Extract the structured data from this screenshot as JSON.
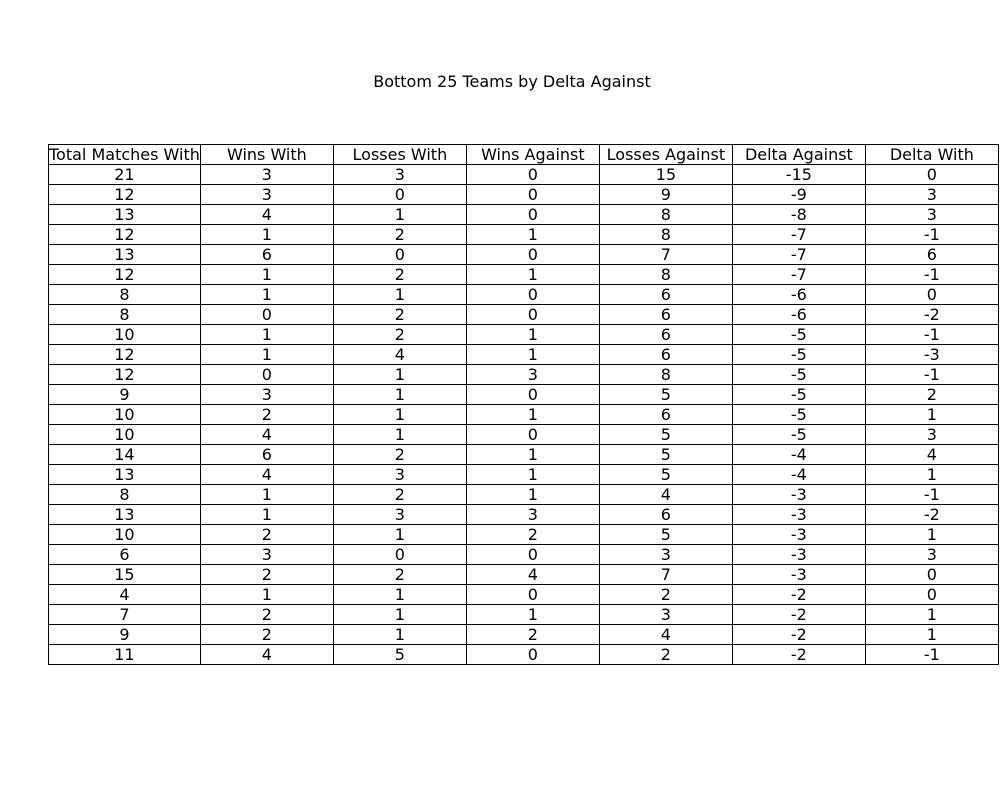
{
  "chart_data": {
    "type": "table",
    "title": "Bottom 25 Teams by Delta Against",
    "columns": [
      "Total Matches With",
      "Wins With",
      "Losses With",
      "Wins Against",
      "Losses Against",
      "Delta Against",
      "Delta With"
    ],
    "rows": [
      [
        21,
        3,
        3,
        0,
        15,
        -15,
        0
      ],
      [
        12,
        3,
        0,
        0,
        9,
        -9,
        3
      ],
      [
        13,
        4,
        1,
        0,
        8,
        -8,
        3
      ],
      [
        12,
        1,
        2,
        1,
        8,
        -7,
        -1
      ],
      [
        13,
        6,
        0,
        0,
        7,
        -7,
        6
      ],
      [
        12,
        1,
        2,
        1,
        8,
        -7,
        -1
      ],
      [
        8,
        1,
        1,
        0,
        6,
        -6,
        0
      ],
      [
        8,
        0,
        2,
        0,
        6,
        -6,
        -2
      ],
      [
        10,
        1,
        2,
        1,
        6,
        -5,
        -1
      ],
      [
        12,
        1,
        4,
        1,
        6,
        -5,
        -3
      ],
      [
        12,
        0,
        1,
        3,
        8,
        -5,
        -1
      ],
      [
        9,
        3,
        1,
        0,
        5,
        -5,
        2
      ],
      [
        10,
        2,
        1,
        1,
        6,
        -5,
        1
      ],
      [
        10,
        4,
        1,
        0,
        5,
        -5,
        3
      ],
      [
        14,
        6,
        2,
        1,
        5,
        -4,
        4
      ],
      [
        13,
        4,
        3,
        1,
        5,
        -4,
        1
      ],
      [
        8,
        1,
        2,
        1,
        4,
        -3,
        -1
      ],
      [
        13,
        1,
        3,
        3,
        6,
        -3,
        -2
      ],
      [
        10,
        2,
        1,
        2,
        5,
        -3,
        1
      ],
      [
        6,
        3,
        0,
        0,
        3,
        -3,
        3
      ],
      [
        15,
        2,
        2,
        4,
        7,
        -3,
        0
      ],
      [
        4,
        1,
        1,
        0,
        2,
        -2,
        0
      ],
      [
        7,
        2,
        1,
        1,
        3,
        -2,
        1
      ],
      [
        9,
        2,
        1,
        2,
        4,
        -2,
        1
      ],
      [
        11,
        4,
        5,
        0,
        2,
        -2,
        -1
      ]
    ]
  }
}
